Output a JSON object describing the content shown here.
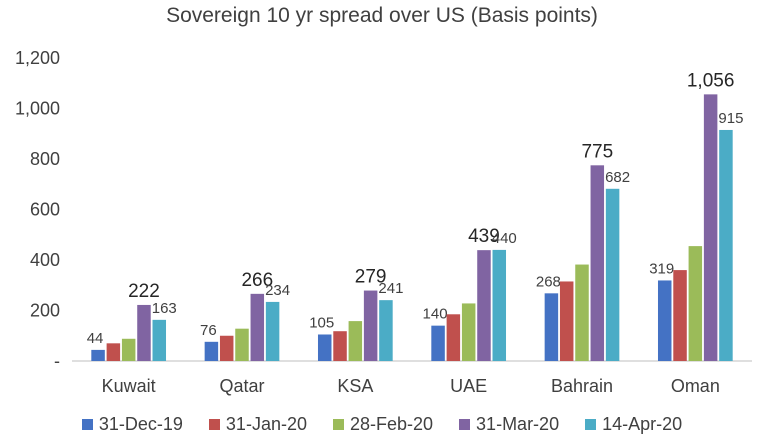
{
  "chart_data": {
    "type": "bar",
    "title": "Sovereign 10 yr spread over US (Basis points)",
    "categories": [
      "Kuwait",
      "Qatar",
      "KSA",
      "UAE",
      "Bahrain",
      "Oman"
    ],
    "y_ticks": [
      "-",
      "200",
      "400",
      "600",
      "800",
      "1,000",
      "1,200"
    ],
    "ylim": [
      0,
      1200
    ],
    "grid": false,
    "legend_position": "bottom",
    "series": [
      {
        "name": "31-Dec-19",
        "color": "#4472C4",
        "values": [
          44,
          76,
          105,
          140,
          268,
          319
        ],
        "labels": [
          "44",
          "76",
          "105",
          "140",
          "268",
          "319"
        ]
      },
      {
        "name": "31-Jan-20",
        "color": "#C0504D",
        "values": [
          70,
          100,
          118,
          185,
          315,
          360
        ],
        "labels": [
          "",
          "",
          "",
          "",
          "",
          ""
        ]
      },
      {
        "name": "28-Feb-20",
        "color": "#9BBB59",
        "values": [
          88,
          128,
          158,
          228,
          382,
          455
        ],
        "labels": [
          "",
          "",
          "",
          "",
          "",
          ""
        ]
      },
      {
        "name": "31-Mar-20",
        "color": "#8064A2",
        "values": [
          222,
          266,
          279,
          439,
          775,
          1056
        ],
        "labels": [
          "222",
          "266",
          "279",
          "439",
          "775",
          "1,056"
        ]
      },
      {
        "name": "14-Apr-20",
        "color": "#4BACC6",
        "values": [
          163,
          234,
          241,
          440,
          682,
          915
        ],
        "labels": [
          "163",
          "234",
          "241",
          "440",
          "682",
          "915"
        ]
      }
    ]
  }
}
